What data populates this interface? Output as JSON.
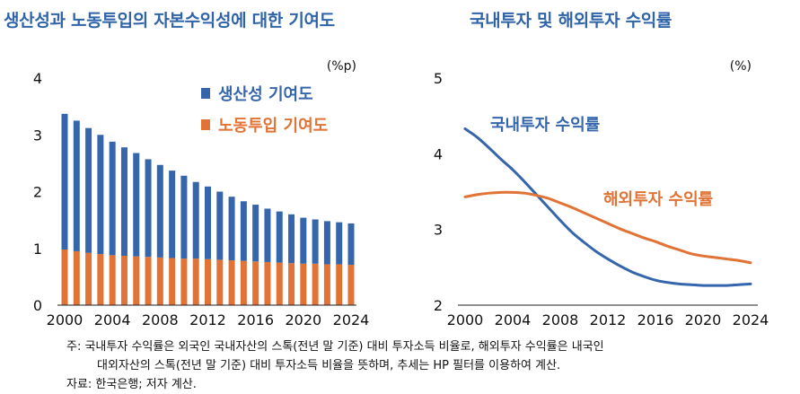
{
  "titles": {
    "left": "생산성과 노동투입의 자본수익성에 대한 기여도",
    "right": "국내투자 및 해외투자 수익률"
  },
  "notes": {
    "note_line1": "주: 국내투자 수익률은 외국인 국내자산의 스톡(전년 말 기준) 대비 투자소득 비율로, 해외투자 수익률은 내국인",
    "note_line2": "대외자산의 스톡(전년 말 기준) 대비 투자소득 비율을 뜻하며, 추세는 HP 필터를 이용하여 계산.",
    "source": "자료: 한국은행; 저자 계산."
  },
  "colors": {
    "title": "#2f64a8",
    "productivity": "#3566ac",
    "labor": "#e07335",
    "domestic": "#3566ac",
    "foreign": "#e07335"
  },
  "chart_data": [
    {
      "type": "bar",
      "stacked": true,
      "title": "생산성과 노동투입의 자본수익성에 대한 기여도",
      "unit": "(%p)",
      "x": [
        2000,
        2001,
        2002,
        2003,
        2004,
        2005,
        2006,
        2007,
        2008,
        2009,
        2010,
        2011,
        2012,
        2013,
        2014,
        2015,
        2016,
        2017,
        2018,
        2019,
        2020,
        2021,
        2022,
        2023,
        2024
      ],
      "xticks": [
        "2000",
        "2004",
        "2008",
        "2012",
        "2016",
        "2020",
        "2024"
      ],
      "ylim": [
        0,
        4
      ],
      "yticks": [
        "0",
        "1",
        "2",
        "3",
        "4"
      ],
      "series": [
        {
          "name": "노동투입 기여도",
          "key": "labor",
          "values": [
            0.98,
            0.95,
            0.92,
            0.9,
            0.88,
            0.87,
            0.86,
            0.85,
            0.84,
            0.83,
            0.82,
            0.82,
            0.81,
            0.8,
            0.79,
            0.78,
            0.77,
            0.76,
            0.75,
            0.74,
            0.73,
            0.73,
            0.72,
            0.72,
            0.71
          ]
        },
        {
          "name": "생산성 기여도",
          "key": "productivity",
          "values": [
            2.39,
            2.3,
            2.2,
            2.1,
            2.0,
            1.91,
            1.82,
            1.72,
            1.63,
            1.54,
            1.46,
            1.35,
            1.28,
            1.2,
            1.12,
            1.05,
            1.0,
            0.94,
            0.9,
            0.86,
            0.81,
            0.78,
            0.76,
            0.74,
            0.73
          ]
        }
      ],
      "legend": [
        {
          "label": "생산성 기여도",
          "key": "productivity"
        },
        {
          "label": "노동투입 기여도",
          "key": "labor"
        }
      ]
    },
    {
      "type": "line",
      "title": "국내투자 및 해외투자 수익률",
      "unit": "(%)",
      "x": [
        2000,
        2001,
        2002,
        2003,
        2004,
        2005,
        2006,
        2007,
        2008,
        2009,
        2010,
        2011,
        2012,
        2013,
        2014,
        2015,
        2016,
        2017,
        2018,
        2019,
        2020,
        2021,
        2022,
        2023,
        2024
      ],
      "xticks": [
        "2000",
        "2004",
        "2008",
        "2012",
        "2016",
        "2020",
        "2024"
      ],
      "ylim": [
        2,
        5
      ],
      "yticks": [
        "2",
        "3",
        "4",
        "5"
      ],
      "series": [
        {
          "name": "국내투자 수익률",
          "key": "domestic",
          "values": [
            4.33,
            4.22,
            4.08,
            3.93,
            3.79,
            3.63,
            3.46,
            3.29,
            3.12,
            2.96,
            2.83,
            2.71,
            2.61,
            2.52,
            2.44,
            2.38,
            2.33,
            2.3,
            2.28,
            2.27,
            2.26,
            2.26,
            2.26,
            2.27,
            2.28
          ]
        },
        {
          "name": "해외투자 수익률",
          "key": "foreign",
          "values": [
            3.43,
            3.46,
            3.48,
            3.49,
            3.49,
            3.48,
            3.45,
            3.41,
            3.35,
            3.29,
            3.22,
            3.15,
            3.08,
            3.01,
            2.95,
            2.89,
            2.84,
            2.78,
            2.73,
            2.68,
            2.65,
            2.63,
            2.61,
            2.59,
            2.56
          ]
        }
      ]
    }
  ]
}
